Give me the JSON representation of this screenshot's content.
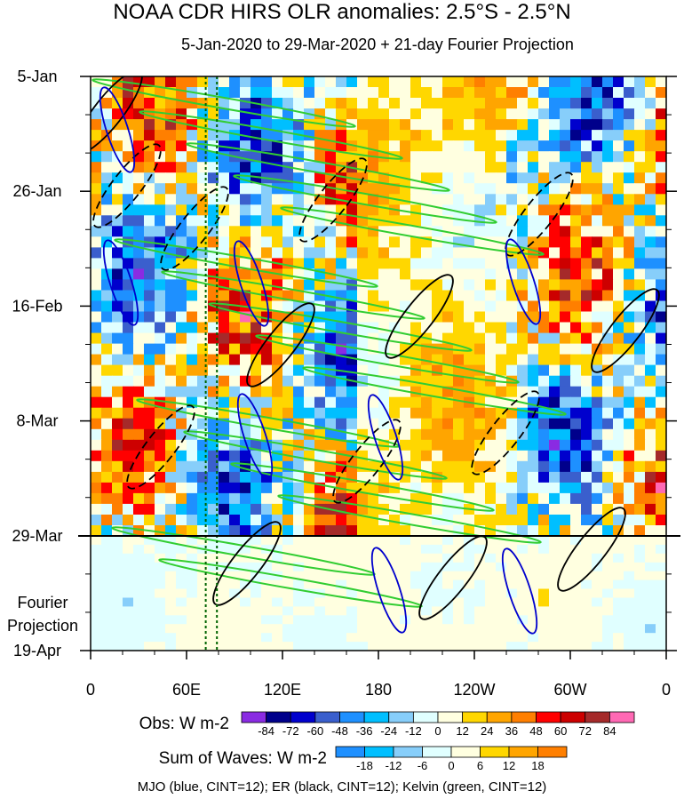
{
  "title": "NOAA CDR HIRS OLR anomalies: 2.5°S - 2.5°N",
  "subtitle": "5-Jan-2020 to 29-Mar-2020 + 21-day Fourier Projection",
  "chart_data": {
    "type": "heatmap",
    "x_ticks": [
      "0",
      "60E",
      "120E",
      "180",
      "120W",
      "60W",
      "0"
    ],
    "x_range_deg_east": [
      0,
      360
    ],
    "y_ticks": [
      "5-Jan",
      "26-Jan",
      "16-Feb",
      "8-Mar",
      "29-Mar",
      "19-Apr"
    ],
    "projection_label": [
      "Fourier",
      "Projection"
    ],
    "observed_end": "29-Mar",
    "dashed_lines_deg_east": [
      72,
      79
    ],
    "colorbars": [
      {
        "title": "Obs: W m-2",
        "levels": [
          "-84",
          "-72",
          "-60",
          "-48",
          "-36",
          "-24",
          "-12",
          "0",
          "12",
          "24",
          "36",
          "48",
          "60",
          "72",
          "84"
        ],
        "colors": [
          "#8a2be2",
          "#00008b",
          "#0000cd",
          "#3a5fcd",
          "#1e90ff",
          "#00bfff",
          "#87cefa",
          "#e0ffff",
          "#ffffe0",
          "#ffd700",
          "#ffa500",
          "#ff7f00",
          "#ff0000",
          "#cd0000",
          "#a52a2a",
          "#ff69b4"
        ]
      },
      {
        "title": "Sum of Waves: W m-2",
        "levels": [
          "-18",
          "-12",
          "-6",
          "0",
          "6",
          "12",
          "18"
        ],
        "colors": [
          "#1e90ff",
          "#00bfff",
          "#87cefa",
          "#e0ffff",
          "#ffffe0",
          "#ffd700",
          "#ffa500",
          "#ff7f00"
        ]
      }
    ],
    "contours": "MJO (blue, CINT=12); ER (black, CINT=12); Kelvin (green, CINT=12)",
    "contour_colors": {
      "MJO": "#0000cd",
      "ER": "#000000",
      "Kelvin": "#32cd32"
    }
  }
}
